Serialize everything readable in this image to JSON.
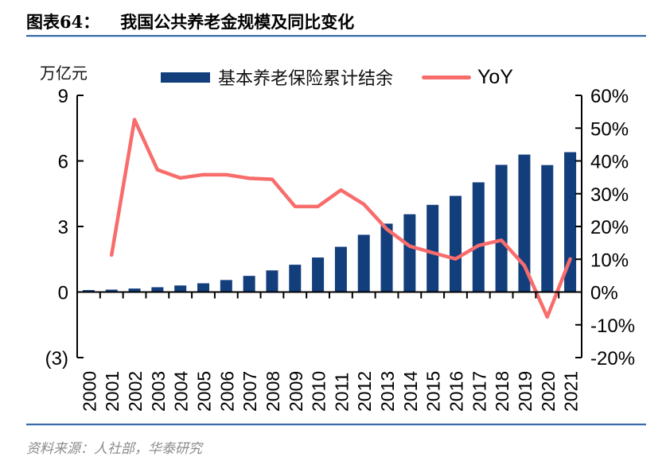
{
  "header": {
    "figure_label": "图表64：",
    "title": "我国公共养老金规模及同比变化"
  },
  "legend": {
    "bar_label": "基本养老保险累计结余",
    "line_label": "YoY"
  },
  "footer": {
    "source": "资料来源：人社部，华泰研究"
  },
  "colors": {
    "bar": "#123E7C",
    "line": "#F86C6C",
    "axis": "#000000",
    "rule": "#3A6BA5",
    "source_text": "#8C8C8C"
  },
  "chart_data": {
    "type": "bar",
    "subtype": "dual-axis bar + line combo",
    "title": "我国公共养老金规模及同比变化",
    "categories": [
      "2000",
      "2001",
      "2002",
      "2003",
      "2004",
      "2005",
      "2006",
      "2007",
      "2008",
      "2009",
      "2010",
      "2011",
      "2012",
      "2013",
      "2014",
      "2015",
      "2016",
      "2017",
      "2018",
      "2019",
      "2020",
      "2021"
    ],
    "series": [
      {
        "name": "基本养老保险累计结余",
        "type": "bar",
        "axis": "left",
        "unit": "万亿元",
        "values": [
          0.09,
          0.11,
          0.16,
          0.22,
          0.3,
          0.4,
          0.55,
          0.74,
          0.99,
          1.25,
          1.58,
          2.07,
          2.62,
          3.13,
          3.56,
          3.99,
          4.4,
          5.02,
          5.82,
          6.29,
          5.81,
          6.4
        ]
      },
      {
        "name": "YoY",
        "type": "line",
        "axis": "right",
        "unit": "%",
        "values": [
          null,
          11.3,
          52.6,
          37.3,
          34.8,
          35.8,
          35.8,
          34.7,
          34.4,
          26.1,
          26.1,
          31.1,
          26.8,
          19.2,
          14.0,
          12.0,
          10.1,
          14.2,
          15.8,
          8.1,
          -7.6,
          10.1
        ]
      }
    ],
    "left_axis": {
      "label": "万亿元",
      "min": -3,
      "max": 9,
      "tick_values": [
        9,
        6,
        3,
        0,
        -3
      ],
      "tick_labels": [
        "9",
        "6",
        "3",
        "0",
        "(3)"
      ]
    },
    "right_axis": {
      "min": -20,
      "max": 60,
      "tick_values": [
        60,
        50,
        40,
        30,
        20,
        10,
        0,
        -10,
        -20
      ],
      "tick_labels": [
        "60%",
        "50%",
        "40%",
        "30%",
        "20%",
        "10%",
        "0%",
        "-10%",
        "-20%"
      ]
    },
    "legend_position": "top",
    "grid": false
  }
}
